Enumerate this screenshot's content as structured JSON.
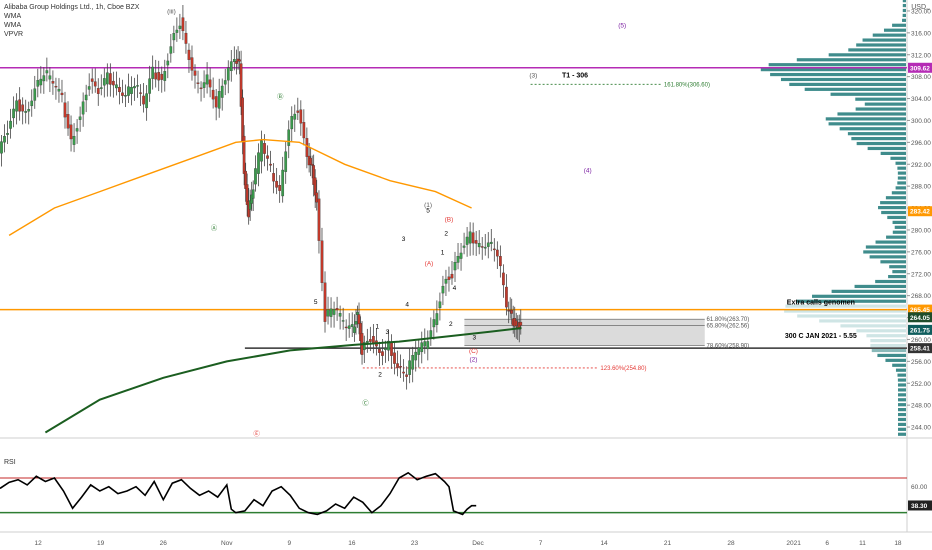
{
  "header": {
    "symbol_line": "Alibaba Group Holdings Ltd., 1h, Cboe BZX",
    "indicators": [
      "WMA",
      "WMA",
      "VPVR"
    ],
    "currency": "USD",
    "currency_suffix": "⌄"
  },
  "chart_data": {
    "type": "candlestick",
    "title": "Alibaba Group Holdings Ltd., 1h, Cboe BZX",
    "ylim": [
      242,
      322
    ],
    "y_ticks": [
      244,
      248,
      252,
      256,
      260,
      264,
      268,
      272,
      276,
      280,
      284,
      288,
      292,
      296,
      300,
      304,
      308,
      312,
      316,
      320
    ],
    "y_tick_labels": [
      "244.00",
      "248.00",
      "252.00",
      "256.00",
      "260.00",
      "264.00",
      "268.00",
      "272.00",
      "276.00",
      "280.00",
      "284.00",
      "288.00",
      "292.00",
      "296.00",
      "300.00",
      "304.00",
      "308.00",
      "312.00",
      "316.00",
      "320.00"
    ],
    "x_ticks": [
      {
        "label": "12",
        "x": 0.042
      },
      {
        "label": "19",
        "x": 0.111
      },
      {
        "label": "26",
        "x": 0.18
      },
      {
        "label": "Nov",
        "x": 0.25
      },
      {
        "label": "9",
        "x": 0.319
      },
      {
        "label": "16",
        "x": 0.388
      },
      {
        "label": "23",
        "x": 0.457
      },
      {
        "label": "Dec",
        "x": 0.527
      },
      {
        "label": "7",
        "x": 0.596
      },
      {
        "label": "14",
        "x": 0.666
      },
      {
        "label": "21",
        "x": 0.736
      },
      {
        "label": "28",
        "x": 0.806
      },
      {
        "label": "2021",
        "x": 0.875
      },
      {
        "label": "6",
        "x": 0.912
      },
      {
        "label": "11",
        "x": 0.951
      },
      {
        "label": "18",
        "x": 0.99
      }
    ],
    "price_path": [
      [
        0.0,
        294
      ],
      [
        0.01,
        298
      ],
      [
        0.02,
        303
      ],
      [
        0.03,
        301
      ],
      [
        0.04,
        306
      ],
      [
        0.05,
        309
      ],
      [
        0.06,
        307
      ],
      [
        0.07,
        304
      ],
      [
        0.08,
        296
      ],
      [
        0.09,
        301
      ],
      [
        0.1,
        307
      ],
      [
        0.11,
        305
      ],
      [
        0.12,
        308
      ],
      [
        0.13,
        306
      ],
      [
        0.14,
        305
      ],
      [
        0.15,
        307
      ],
      [
        0.16,
        303
      ],
      [
        0.17,
        309
      ],
      [
        0.18,
        307
      ],
      [
        0.19,
        314
      ],
      [
        0.2,
        318
      ],
      [
        0.21,
        311
      ],
      [
        0.22,
        306
      ],
      [
        0.23,
        308
      ],
      [
        0.24,
        303
      ],
      [
        0.25,
        308
      ],
      [
        0.26,
        311
      ],
      [
        0.265,
        310
      ],
      [
        0.27,
        290
      ],
      [
        0.275,
        283
      ],
      [
        0.28,
        288
      ],
      [
        0.29,
        296
      ],
      [
        0.3,
        291
      ],
      [
        0.31,
        287
      ],
      [
        0.32,
        299
      ],
      [
        0.33,
        302
      ],
      [
        0.34,
        293
      ],
      [
        0.345,
        291
      ],
      [
        0.35,
        285
      ],
      [
        0.36,
        264
      ],
      [
        0.37,
        266
      ],
      [
        0.38,
        263
      ],
      [
        0.39,
        262
      ],
      [
        0.395,
        265
      ],
      [
        0.4,
        258
      ],
      [
        0.41,
        260
      ],
      [
        0.42,
        257
      ],
      [
        0.43,
        259
      ],
      [
        0.44,
        255
      ],
      [
        0.45,
        254
      ],
      [
        0.46,
        258
      ],
      [
        0.47,
        259
      ],
      [
        0.48,
        263
      ],
      [
        0.49,
        270
      ],
      [
        0.5,
        272
      ],
      [
        0.51,
        276
      ],
      [
        0.52,
        279
      ],
      [
        0.53,
        277
      ],
      [
        0.54,
        278
      ],
      [
        0.55,
        276
      ],
      [
        0.56,
        266
      ],
      [
        0.565,
        264
      ],
      [
        0.57,
        262
      ],
      [
        0.575,
        263
      ]
    ],
    "wma_200": [
      [
        0.01,
        279
      ],
      [
        0.06,
        284
      ],
      [
        0.11,
        287
      ],
      [
        0.16,
        290
      ],
      [
        0.21,
        293
      ],
      [
        0.26,
        296
      ],
      [
        0.29,
        296.5
      ],
      [
        0.33,
        296
      ],
      [
        0.38,
        292
      ],
      [
        0.43,
        289
      ],
      [
        0.48,
        287
      ],
      [
        0.52,
        284
      ]
    ],
    "wma_long": [
      [
        0.05,
        243
      ],
      [
        0.11,
        249
      ],
      [
        0.18,
        253
      ],
      [
        0.25,
        256
      ],
      [
        0.32,
        258
      ],
      [
        0.39,
        259
      ],
      [
        0.44,
        259.6
      ],
      [
        0.49,
        260.5
      ],
      [
        0.54,
        261.4
      ],
      [
        0.575,
        262.1
      ]
    ],
    "horizontal_levels": [
      {
        "price": 309.62,
        "color": "#b52bb5",
        "label": "309.62"
      },
      {
        "price": 265.45,
        "color": "#ff9800",
        "label": "265.45"
      },
      {
        "price": 258.41,
        "color": "#333333",
        "label": "258.41"
      }
    ],
    "price_labels": [
      {
        "price": 283.42,
        "label": "283.42",
        "color": "#ff9800"
      },
      {
        "price": 264.05,
        "label": "264.05",
        "color": "#1e4d2b"
      },
      {
        "price": 261.75,
        "label": "261.75",
        "color": "#0f5d5d"
      }
    ],
    "fib_levels": [
      {
        "price": 263.7,
        "label": "61.80%(263.70)"
      },
      {
        "price": 262.56,
        "label": "65.80%(262.56)"
      },
      {
        "price": 258.9,
        "label": "78.60%(258.90)"
      },
      {
        "price": 254.8,
        "label": "123.60%(254.80)",
        "color": "#e53935"
      },
      {
        "price": 306.6,
        "label": "161.80%(306.60)",
        "color": "#2e7d32"
      }
    ],
    "annotations": [
      {
        "text": "(iii)",
        "x": 0.189,
        "y": 319.5,
        "color": "#555"
      },
      {
        "text": "Ⓑ",
        "x": 0.309,
        "y": 304,
        "color": "#2e7d32"
      },
      {
        "text": "Ⓐ",
        "x": 0.236,
        "y": 280,
        "color": "#2e7d32"
      },
      {
        "text": "Ⓒ",
        "x": 0.403,
        "y": 248,
        "color": "#2e7d32"
      },
      {
        "text": "Ⓔ",
        "x": 0.283,
        "y": 242.5,
        "color": "#e53935"
      },
      {
        "text": "(5)",
        "x": 0.686,
        "y": 317,
        "color": "#7b1fa2"
      },
      {
        "text": "(4)",
        "x": 0.648,
        "y": 290.5,
        "color": "#7b1fa2"
      },
      {
        "text": "(3)",
        "x": 0.588,
        "y": 307.8,
        "color": "#555"
      },
      {
        "text": "T1 - 306",
        "x": 0.634,
        "y": 307.8,
        "color": "#000"
      },
      {
        "text": "(1)",
        "x": 0.472,
        "y": 284.2,
        "color": "#555"
      },
      {
        "text": "5",
        "x": 0.472,
        "y": 283.2,
        "color": "#000"
      },
      {
        "text": "(B)",
        "x": 0.495,
        "y": 281.5,
        "color": "#e53935"
      },
      {
        "text": "(A)",
        "x": 0.473,
        "y": 273.5,
        "color": "#e53935"
      },
      {
        "text": "3",
        "x": 0.445,
        "y": 278,
        "color": "#000"
      },
      {
        "text": "2",
        "x": 0.492,
        "y": 279,
        "color": "#000"
      },
      {
        "text": "1",
        "x": 0.488,
        "y": 275.5,
        "color": "#000"
      },
      {
        "text": "4",
        "x": 0.449,
        "y": 266,
        "color": "#000"
      },
      {
        "text": "5",
        "x": 0.348,
        "y": 266.5,
        "color": "#000"
      },
      {
        "text": "1",
        "x": 0.416,
        "y": 262,
        "color": "#000"
      },
      {
        "text": "2",
        "x": 0.419,
        "y": 253.2,
        "color": "#000"
      },
      {
        "text": "3",
        "x": 0.427,
        "y": 261,
        "color": "#000"
      },
      {
        "text": "4",
        "x": 0.501,
        "y": 269,
        "color": "#000"
      },
      {
        "text": "2",
        "x": 0.497,
        "y": 262.5,
        "color": "#000"
      },
      {
        "text": "3",
        "x": 0.523,
        "y": 260,
        "color": "#000"
      },
      {
        "text": "(C)",
        "x": 0.522,
        "y": 257.5,
        "color": "#e53935"
      },
      {
        "text": "(2)",
        "x": 0.522,
        "y": 256,
        "color": "#7b1fa2"
      },
      {
        "text": "Extra calls genomen",
        "x": 0.905,
        "y": 266.4,
        "color": "#000"
      },
      {
        "text": "300 C JAN 2021 - 5.55",
        "x": 0.905,
        "y": 260.3,
        "color": "#000"
      }
    ],
    "volume_profile": {
      "type": "horizontal-bar",
      "ylim": [
        242,
        322
      ],
      "note_color": "#2a7f7f"
    },
    "rsi": {
      "label": "RSI",
      "ylim": [
        10,
        100
      ],
      "upper": 70,
      "lower": 30,
      "ticks": [
        60.0,
        40.0
      ],
      "tick_labels": [
        "60.00",
        "40.00"
      ],
      "current": 38.3,
      "current_label": "38.30",
      "values": [
        [
          0.0,
          58
        ],
        [
          0.01,
          65
        ],
        [
          0.02,
          68
        ],
        [
          0.03,
          62
        ],
        [
          0.04,
          72
        ],
        [
          0.05,
          66
        ],
        [
          0.06,
          70
        ],
        [
          0.07,
          55
        ],
        [
          0.08,
          35
        ],
        [
          0.09,
          48
        ],
        [
          0.1,
          62
        ],
        [
          0.11,
          55
        ],
        [
          0.12,
          60
        ],
        [
          0.13,
          52
        ],
        [
          0.14,
          55
        ],
        [
          0.15,
          60
        ],
        [
          0.16,
          50
        ],
        [
          0.17,
          66
        ],
        [
          0.18,
          45
        ],
        [
          0.19,
          64
        ],
        [
          0.2,
          68
        ],
        [
          0.21,
          58
        ],
        [
          0.22,
          50
        ],
        [
          0.23,
          55
        ],
        [
          0.24,
          48
        ],
        [
          0.25,
          62
        ],
        [
          0.255,
          34
        ],
        [
          0.26,
          30
        ],
        [
          0.27,
          32
        ],
        [
          0.28,
          45
        ],
        [
          0.29,
          38
        ],
        [
          0.3,
          55
        ],
        [
          0.31,
          60
        ],
        [
          0.32,
          50
        ],
        [
          0.33,
          35
        ],
        [
          0.34,
          30
        ],
        [
          0.35,
          28
        ],
        [
          0.36,
          32
        ],
        [
          0.37,
          40
        ],
        [
          0.38,
          35
        ],
        [
          0.39,
          48
        ],
        [
          0.4,
          42
        ],
        [
          0.41,
          30
        ],
        [
          0.42,
          38
        ],
        [
          0.43,
          52
        ],
        [
          0.44,
          70
        ],
        [
          0.45,
          76
        ],
        [
          0.46,
          68
        ],
        [
          0.47,
          72
        ],
        [
          0.48,
          75
        ],
        [
          0.49,
          66
        ],
        [
          0.495,
          60
        ],
        [
          0.5,
          32
        ],
        [
          0.505,
          30
        ],
        [
          0.51,
          28
        ],
        [
          0.515,
          34
        ],
        [
          0.52,
          38
        ],
        [
          0.525,
          38
        ]
      ]
    }
  }
}
